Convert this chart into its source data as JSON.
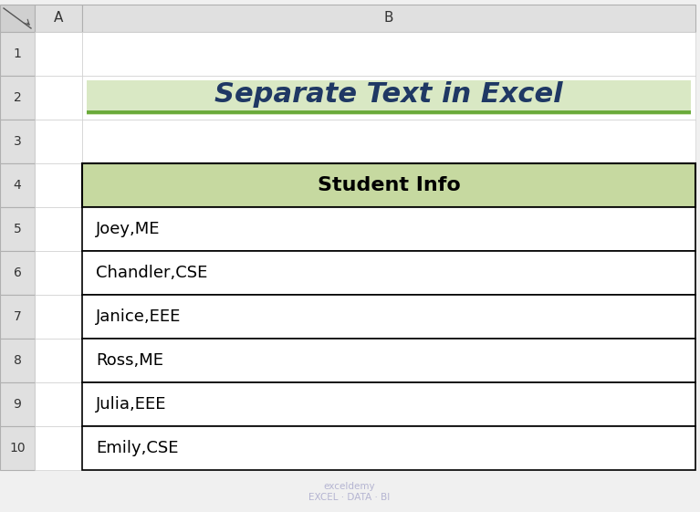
{
  "title": "Separate Text in Excel",
  "title_bg_color": "#d9e8c4",
  "title_border_color": "#6aaa3a",
  "title_font_color": "#1f3864",
  "title_fontsize": 22,
  "header_text": "Student Info",
  "header_bg_color": "#c6d9a0",
  "header_border_color": "#000000",
  "header_fontsize": 16,
  "data_rows": [
    "Joey,ME",
    "Chandler,CSE",
    "Janice,EEE",
    "Ross,ME",
    "Julia,EEE",
    "Emily,CSE"
  ],
  "data_fontsize": 13,
  "row_bg_color": "#ffffff",
  "row_border_color": "#000000",
  "col_a_label": "A",
  "col_b_label": "B",
  "row_numbers": [
    "1",
    "2",
    "3",
    "4",
    "5",
    "6",
    "7",
    "8",
    "9",
    "10"
  ],
  "bg_color": "#f0f0f0",
  "header_col_bg": "#e0e0e0",
  "watermark_text": "exceldemy\nEXCEL · DATA · BI",
  "watermark_color": "#aaaacc"
}
